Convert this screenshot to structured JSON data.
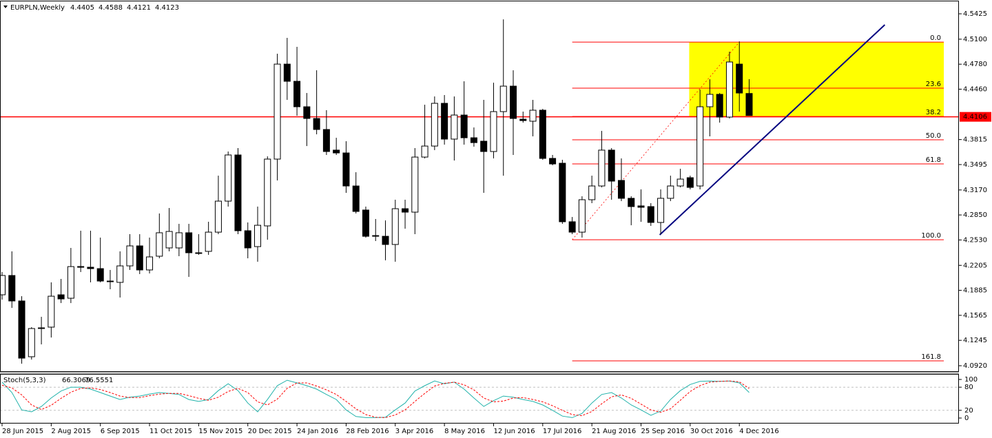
{
  "chart_data": [
    {
      "type": "candlestick",
      "title": "EURPLN,Weekly",
      "color": "#000000",
      "open": [
        4.1828,
        4.2075,
        4.1749,
        4.1035,
        4.1396,
        4.1414,
        4.1828,
        4.1784,
        4.219,
        4.2181,
        4.2163,
        4.2004,
        4.1987,
        4.2198,
        4.2454,
        4.2146,
        4.2322,
        4.2428,
        4.2428,
        4.2622,
        4.2366,
        4.2384,
        4.263,
        4.3027,
        4.3618,
        4.2648,
        4.2445,
        4.271,
        4.3565,
        4.4781,
        4.4561,
        4.4235,
        4.4085,
        4.3944,
        4.368,
        4.3644,
        4.3221,
        4.2913,
        4.2586,
        4.2577,
        4.2472,
        4.293,
        4.2886,
        4.3591,
        4.3732,
        4.4279,
        4.3821,
        4.4129,
        4.3838,
        4.3794,
        4.3662,
        4.4173,
        4.4499,
        4.4076,
        4.405,
        4.4191,
        4.3574,
        4.3512,
        4.2763,
        4.263,
        4.3045,
        4.3221,
        4.368,
        4.3292,
        4.3063,
        4.2966,
        4.2957,
        4.2754,
        4.3063,
        4.3221,
        4.3327,
        4.3221,
        4.4235,
        4.4394,
        4.4103,
        4.4781,
        4.4405
      ],
      "high": [
        4.2119,
        4.2384,
        4.181,
        4.1414,
        4.1546,
        4.1987,
        4.2031,
        4.2428,
        4.2648,
        4.2648,
        4.256,
        4.2146,
        4.2384,
        4.2604,
        4.2604,
        4.256,
        4.2869,
        4.2939,
        4.2736,
        4.2736,
        4.2604,
        4.2763,
        4.3353,
        4.3662,
        4.3706,
        4.2754,
        4.2957,
        4.36,
        4.4914,
        4.5117,
        4.5002,
        4.4411,
        4.4702,
        4.4191,
        4.3838,
        4.3794,
        4.3397,
        4.2957,
        4.2798,
        4.278,
        4.3045,
        4.3045,
        4.3706,
        4.4261,
        4.4367,
        4.4385,
        4.4367,
        4.4561,
        4.397,
        4.4323,
        4.4543,
        4.5354,
        4.4702,
        4.4173,
        4.4323,
        4.4208,
        4.3618,
        4.3556,
        4.2824,
        4.3089,
        4.3353,
        4.3926,
        4.3706,
        4.3574,
        4.3089,
        4.3177,
        4.3001,
        4.3177,
        4.3353,
        4.3441,
        4.3353,
        4.4455,
        4.4587,
        4.4411,
        4.494,
        4.5072,
        4.4588
      ],
      "low": [
        4.1766,
        4.166,
        4.0946,
        4.0999,
        4.1193,
        4.1281,
        4.1722,
        4.1722,
        4.2119,
        4.1987,
        4.1987,
        4.1899,
        4.1793,
        4.2146,
        4.2093,
        4.2101,
        4.2295,
        4.2384,
        4.2322,
        4.2057,
        4.2339,
        4.2339,
        4.2604,
        4.2957,
        4.2604,
        4.2295,
        4.2251,
        4.2533,
        4.3292,
        4.4323,
        4.412,
        4.3732,
        4.3882,
        4.3618,
        4.3618,
        4.3133,
        4.2869,
        4.256,
        4.2516,
        4.2269,
        4.2251,
        4.2674,
        4.2604,
        4.3574,
        4.368,
        4.375,
        4.3547,
        4.375,
        4.3724,
        4.3133,
        4.3574,
        4.3353,
        4.3618,
        4.4032,
        4.3856,
        4.3556,
        4.3486,
        4.2736,
        4.2604,
        4.256,
        4.3001,
        4.3203,
        4.3045,
        4.3027,
        4.2718,
        4.2762,
        4.271,
        4.2604,
        4.3027,
        4.3203,
        4.3177,
        4.3177,
        4.3856,
        4.4032,
        4.4085,
        4.4173,
        4.4121
      ],
      "close": [
        4.2075,
        4.1749,
        4.1017,
        4.1396,
        4.1405,
        4.181,
        4.1775,
        4.2189,
        4.218,
        4.2163,
        4.2004,
        4.1996,
        4.2198,
        4.2454,
        4.2146,
        4.2313,
        4.2622,
        4.2639,
        4.2622,
        4.2366,
        4.2357,
        4.263,
        4.3027,
        4.3618,
        4.2648,
        4.2428,
        4.2718,
        4.3565,
        4.4781,
        4.4561,
        4.4235,
        4.4085,
        4.3944,
        4.3662,
        4.3644,
        4.3221,
        4.2895,
        4.2577,
        4.2577,
        4.2472,
        4.293,
        4.2886,
        4.3591,
        4.3732,
        4.4279,
        4.3821,
        4.4129,
        4.3838,
        4.3776,
        4.3662,
        4.4173,
        4.4499,
        4.4085,
        4.4058,
        4.4191,
        4.3574,
        4.3503,
        4.2763,
        4.263,
        4.3045,
        4.3221,
        4.368,
        4.3283,
        4.3063,
        4.2957,
        4.2948,
        4.2754,
        4.3063,
        4.3221,
        4.3309,
        4.3203,
        4.4235,
        4.4394,
        4.4103,
        4.4808,
        4.4411,
        4.4123
      ],
      "xlim": [
        -0.21,
        97.34
      ],
      "xticks": [
        {
          "value": 0,
          "label": "28 Jun 2015"
        },
        {
          "value": 5,
          "label": "2 Aug 2015"
        },
        {
          "value": 10,
          "label": "6 Sep 2015"
        },
        {
          "value": 15,
          "label": "11 Oct 2015"
        },
        {
          "value": 20,
          "label": "15 Nov 2015"
        },
        {
          "value": 25,
          "label": "20 Dec 2015"
        },
        {
          "value": 30,
          "label": "24 Jan 2016"
        },
        {
          "value": 35,
          "label": "28 Feb 2016"
        },
        {
          "value": 40,
          "label": "3 Apr 2016"
        },
        {
          "value": 45,
          "label": "8 May 2016"
        },
        {
          "value": 50,
          "label": "12 Jun 2016"
        },
        {
          "value": 55,
          "label": "17 Jul 2016"
        },
        {
          "value": 60,
          "label": "21 Aug 2016"
        },
        {
          "value": 65,
          "label": "25 Sep 2016"
        },
        {
          "value": 70,
          "label": "30 Oct 2016"
        },
        {
          "value": 75,
          "label": "4 Dec 2016"
        }
      ],
      "ylim": [
        4.0841,
        4.5584
      ],
      "yticks": [
        {
          "value": 4.5425,
          "label": "4.5425"
        },
        {
          "value": 4.51,
          "label": "4.5100"
        },
        {
          "value": 4.478,
          "label": "4.4780"
        },
        {
          "value": 4.446,
          "label": "4.4460"
        },
        {
          "value": 4.3815,
          "label": "4.3815"
        },
        {
          "value": 4.3495,
          "label": "4.3495"
        },
        {
          "value": 4.317,
          "label": "4.3170"
        },
        {
          "value": 4.285,
          "label": "4.2850"
        },
        {
          "value": 4.253,
          "label": "4.2530"
        },
        {
          "value": 4.2205,
          "label": "4.2205"
        },
        {
          "value": 4.1885,
          "label": "4.1885"
        },
        {
          "value": 4.1565,
          "label": "4.1565"
        },
        {
          "value": 4.1245,
          "label": "4.1245"
        },
        {
          "value": 4.092,
          "label": "4.0920"
        }
      ],
      "hlines": [
        {
          "value": 4.4106,
          "color": "#ff0000"
        }
      ],
      "rectangle": {
        "color": "#ffff00",
        "x": [
          69.9,
          95.8
        ],
        "y": [
          4.4111,
          4.5063
        ]
      },
      "fibonacci": {
        "color": "#ff0000",
        "x": [
          58,
          95.8
        ],
        "anchor_x": [
          58,
          75
        ],
        "anchor_y": [
          4.2533,
          4.5063
        ],
        "levels": [
          {
            "value": 4.5063,
            "label": "0.0"
          },
          {
            "value": 4.4473,
            "label": "23.6"
          },
          {
            "value": 4.4111,
            "label": "38.2"
          },
          {
            "value": 4.3812,
            "label": "50.0"
          },
          {
            "value": 4.3503,
            "label": "61.8"
          },
          {
            "value": 4.2533,
            "label": "100.0"
          },
          {
            "value": 4.0982,
            "label": "161.8"
          }
        ]
      },
      "trendline": {
        "color": "#000080",
        "x": [
          66.9,
          89.8
        ],
        "y": [
          4.2595,
          4.5284
        ]
      }
    },
    {
      "type": "line",
      "title": "Stoch(5,3,3)",
      "ylim": [
        -12.5,
        112.5
      ],
      "yticks": [
        100,
        80,
        20,
        0
      ],
      "series": [
        {
          "color": "#20b2aa",
          "values": [
            93,
            66,
            21,
            16,
            30,
            52,
            70,
            80,
            80,
            75,
            66,
            57,
            48,
            54,
            57,
            62,
            66,
            64,
            61,
            48,
            43,
            48,
            71,
            89,
            71,
            39,
            16,
            48,
            84,
            98,
            91,
            84,
            75,
            61,
            48,
            21,
            4,
            1,
            1,
            2,
            21,
            39,
            70,
            84,
            96,
            89,
            93,
            75,
            52,
            30,
            45,
            57,
            54,
            48,
            43,
            34,
            20,
            5,
            1,
            12,
            39,
            61,
            66,
            52,
            34,
            21,
            7,
            18,
            48,
            71,
            87,
            95,
            96,
            95,
            96,
            91,
            66.3069
          ]
        },
        {
          "color": "#ff0000",
          "dash": true,
          "values": [
            85,
            78,
            60,
            34,
            22,
            33,
            51,
            67,
            77,
            78,
            74,
            66,
            57,
            53,
            53,
            58,
            62,
            64,
            64,
            58,
            51,
            46,
            54,
            69,
            77,
            66,
            42,
            34,
            49,
            77,
            91,
            91,
            83,
            73,
            61,
            43,
            24,
            9,
            2,
            1,
            8,
            21,
            43,
            64,
            83,
            90,
            93,
            86,
            73,
            52,
            42,
            44,
            52,
            53,
            48,
            42,
            32,
            20,
            9,
            6,
            17,
            37,
            55,
            60,
            51,
            36,
            21,
            15,
            24,
            46,
            69,
            84,
            93,
            95,
            96,
            94,
            76.5551
          ]
        }
      ]
    }
  ]
}
